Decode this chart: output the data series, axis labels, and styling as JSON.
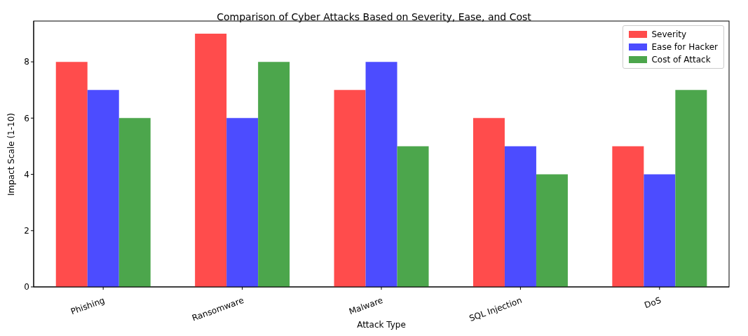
{
  "chart_data": {
    "type": "bar",
    "title": "Comparison of Cyber Attacks Based on Severity, Ease, and Cost",
    "xlabel": "Attack Type",
    "ylabel": "Impact Scale (1-10)",
    "categories": [
      "Phishing",
      "Ransomware",
      "Malware",
      "SQL Injection",
      "DoS"
    ],
    "series": [
      {
        "name": "Severity",
        "color": "#ff4c4c",
        "values": [
          8,
          9,
          7,
          6,
          5
        ]
      },
      {
        "name": "Ease for Hacker",
        "color": "#4c4cff",
        "values": [
          7,
          6,
          8,
          5,
          4
        ]
      },
      {
        "name": "Cost of Attack",
        "color": "#4ca64c",
        "values": [
          6,
          8,
          5,
          4,
          7
        ]
      }
    ],
    "ylim": [
      0,
      9.45
    ],
    "yticks": [
      0,
      2,
      4,
      6,
      8
    ],
    "grid": false,
    "legend": "top right"
  }
}
